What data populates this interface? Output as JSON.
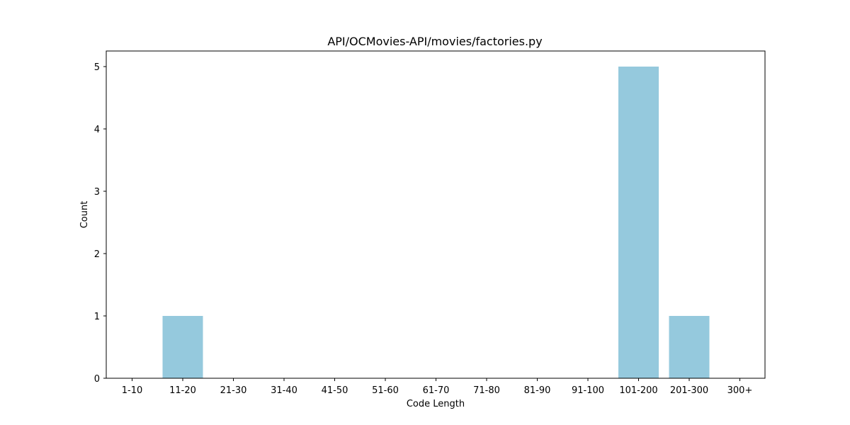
{
  "chart_data": {
    "type": "bar",
    "title": "API/OCMovies-API/movies/factories.py",
    "xlabel": "Code Length",
    "ylabel": "Count",
    "categories": [
      "1-10",
      "11-20",
      "21-30",
      "31-40",
      "41-50",
      "51-60",
      "61-70",
      "71-80",
      "81-90",
      "91-100",
      "101-200",
      "201-300",
      "300+"
    ],
    "values": [
      0,
      1,
      0,
      0,
      0,
      0,
      0,
      0,
      0,
      0,
      5,
      1,
      0
    ],
    "ylim": [
      0,
      5.25
    ],
    "yticks": [
      0,
      1,
      2,
      3,
      4,
      5
    ],
    "bar_color": "#95c9dd",
    "grid": false,
    "legend": "none"
  }
}
